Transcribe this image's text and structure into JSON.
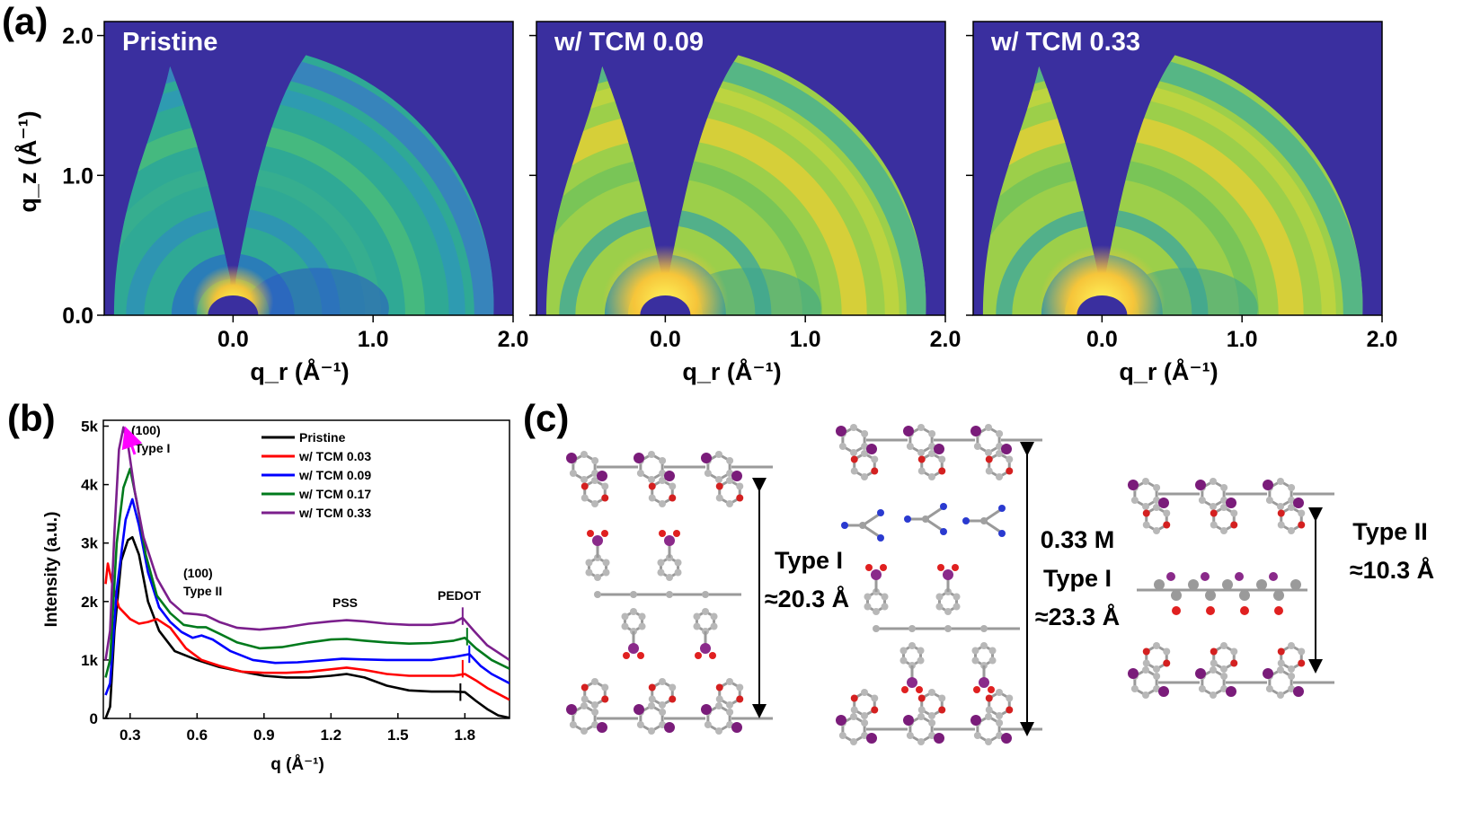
{
  "panel_a": {
    "label": "(a)",
    "plots": [
      {
        "title": "Pristine",
        "intensity": 0.35
      },
      {
        "title": "w/ TCM 0.09",
        "intensity": 0.8
      },
      {
        "title": "w/ TCM 0.33",
        "intensity": 0.9
      }
    ],
    "xlabel": "q_r (Å⁻¹)",
    "ylabel": "q_z (Å⁻¹)",
    "xticks": [
      "0.0",
      "1.0",
      "2.0"
    ],
    "yticks": [
      "0.0",
      "1.0",
      "2.0"
    ],
    "colors": {
      "background": "#3a2f9f",
      "ring": "#2bb08a",
      "bright": "#f2e628"
    }
  },
  "panel_b": {
    "label": "(b)",
    "chart_data": {
      "type": "line",
      "xlabel": "q (Å⁻¹)",
      "ylabel": "Intensity (a.u.)",
      "xlim": [
        0.18,
        2.0
      ],
      "ylim": [
        0,
        5100
      ],
      "xticks": [
        "0.3",
        "0.6",
        "0.9",
        "1.2",
        "1.5",
        "1.8"
      ],
      "yticks": [
        "0",
        "1k",
        "2k",
        "3k",
        "4k",
        "5k"
      ],
      "annotations": {
        "peak100_type1_a": "(100)",
        "peak100_type1_b": "Type I",
        "peak100_type2_a": "(100)",
        "peak100_type2_b": "Type II",
        "pss": "PSS",
        "pedot": "PEDOT"
      },
      "series": [
        {
          "name": "Pristine",
          "color": "#000000",
          "points": [
            [
              0.19,
              0
            ],
            [
              0.21,
              200
            ],
            [
              0.23,
              1500
            ],
            [
              0.26,
              2700
            ],
            [
              0.29,
              3050
            ],
            [
              0.31,
              3100
            ],
            [
              0.34,
              2800
            ],
            [
              0.38,
              2000
            ],
            [
              0.43,
              1500
            ],
            [
              0.5,
              1150
            ],
            [
              0.6,
              1000
            ],
            [
              0.7,
              880
            ],
            [
              0.8,
              800
            ],
            [
              0.9,
              730
            ],
            [
              1.0,
              700
            ],
            [
              1.1,
              700
            ],
            [
              1.2,
              730
            ],
            [
              1.27,
              760
            ],
            [
              1.35,
              700
            ],
            [
              1.45,
              560
            ],
            [
              1.55,
              480
            ],
            [
              1.65,
              460
            ],
            [
              1.75,
              460
            ],
            [
              1.8,
              450
            ],
            [
              1.85,
              300
            ],
            [
              1.9,
              160
            ],
            [
              1.95,
              50
            ],
            [
              2.0,
              10
            ]
          ]
        },
        {
          "name": "w/ TCM 0.03",
          "color": "#ff0000",
          "points": [
            [
              0.19,
              2300
            ],
            [
              0.2,
              2650
            ],
            [
              0.22,
              2300
            ],
            [
              0.25,
              1900
            ],
            [
              0.3,
              1700
            ],
            [
              0.34,
              1620
            ],
            [
              0.38,
              1650
            ],
            [
              0.42,
              1700
            ],
            [
              0.48,
              1550
            ],
            [
              0.55,
              1200
            ],
            [
              0.62,
              1000
            ],
            [
              0.7,
              900
            ],
            [
              0.8,
              800
            ],
            [
              0.9,
              780
            ],
            [
              1.0,
              780
            ],
            [
              1.1,
              800
            ],
            [
              1.2,
              840
            ],
            [
              1.27,
              870
            ],
            [
              1.35,
              830
            ],
            [
              1.45,
              760
            ],
            [
              1.55,
              730
            ],
            [
              1.65,
              730
            ],
            [
              1.75,
              730
            ],
            [
              1.8,
              760
            ],
            [
              1.85,
              650
            ],
            [
              1.9,
              520
            ],
            [
              1.95,
              420
            ],
            [
              2.0,
              320
            ]
          ]
        },
        {
          "name": "w/ TCM 0.09",
          "color": "#0000ff",
          "points": [
            [
              0.19,
              400
            ],
            [
              0.21,
              600
            ],
            [
              0.24,
              2200
            ],
            [
              0.28,
              3400
            ],
            [
              0.31,
              3750
            ],
            [
              0.34,
              3300
            ],
            [
              0.38,
              2500
            ],
            [
              0.43,
              1900
            ],
            [
              0.48,
              1650
            ],
            [
              0.53,
              1480
            ],
            [
              0.58,
              1380
            ],
            [
              0.62,
              1420
            ],
            [
              0.67,
              1350
            ],
            [
              0.75,
              1150
            ],
            [
              0.85,
              1000
            ],
            [
              0.95,
              950
            ],
            [
              1.05,
              960
            ],
            [
              1.15,
              990
            ],
            [
              1.25,
              1020
            ],
            [
              1.35,
              1010
            ],
            [
              1.45,
              1000
            ],
            [
              1.55,
              1000
            ],
            [
              1.65,
              1000
            ],
            [
              1.75,
              1050
            ],
            [
              1.82,
              1100
            ],
            [
              1.87,
              900
            ],
            [
              1.92,
              760
            ],
            [
              2.0,
              600
            ]
          ]
        },
        {
          "name": "w/ TCM 0.17",
          "color": "#007a1c",
          "points": [
            [
              0.19,
              700
            ],
            [
              0.21,
              1000
            ],
            [
              0.24,
              3000
            ],
            [
              0.27,
              3950
            ],
            [
              0.3,
              4270
            ],
            [
              0.33,
              3700
            ],
            [
              0.37,
              2800
            ],
            [
              0.42,
              2100
            ],
            [
              0.48,
              1800
            ],
            [
              0.54,
              1600
            ],
            [
              0.6,
              1560
            ],
            [
              0.64,
              1560
            ],
            [
              0.7,
              1450
            ],
            [
              0.78,
              1300
            ],
            [
              0.88,
              1200
            ],
            [
              0.98,
              1220
            ],
            [
              1.1,
              1300
            ],
            [
              1.2,
              1350
            ],
            [
              1.27,
              1360
            ],
            [
              1.35,
              1330
            ],
            [
              1.45,
              1300
            ],
            [
              1.55,
              1280
            ],
            [
              1.65,
              1290
            ],
            [
              1.75,
              1330
            ],
            [
              1.8,
              1380
            ],
            [
              1.85,
              1200
            ],
            [
              1.92,
              1000
            ],
            [
              2.0,
              850
            ]
          ]
        },
        {
          "name": "w/ TCM 0.33",
          "color": "#7b1f8c",
          "points": [
            [
              0.19,
              1000
            ],
            [
              0.21,
              1500
            ],
            [
              0.23,
              3200
            ],
            [
              0.25,
              4600
            ],
            [
              0.27,
              4980
            ],
            [
              0.29,
              4700
            ],
            [
              0.32,
              3900
            ],
            [
              0.36,
              3100
            ],
            [
              0.42,
              2400
            ],
            [
              0.48,
              2000
            ],
            [
              0.54,
              1800
            ],
            [
              0.6,
              1780
            ],
            [
              0.64,
              1760
            ],
            [
              0.7,
              1650
            ],
            [
              0.78,
              1550
            ],
            [
              0.88,
              1520
            ],
            [
              1.0,
              1560
            ],
            [
              1.1,
              1620
            ],
            [
              1.2,
              1660
            ],
            [
              1.27,
              1680
            ],
            [
              1.35,
              1660
            ],
            [
              1.45,
              1620
            ],
            [
              1.55,
              1600
            ],
            [
              1.65,
              1600
            ],
            [
              1.75,
              1640
            ],
            [
              1.79,
              1720
            ],
            [
              1.84,
              1500
            ],
            [
              1.9,
              1250
            ],
            [
              2.0,
              1000
            ]
          ]
        }
      ]
    }
  },
  "panel_c": {
    "label": "(c)",
    "structures": [
      {
        "lines": [
          "Type I",
          "≈20.3 Å"
        ]
      },
      {
        "lines": [
          "0.33 M",
          "Type I",
          "≈23.3 Å"
        ]
      },
      {
        "lines": [
          "Type II",
          "≈10.3 Å"
        ]
      }
    ]
  }
}
